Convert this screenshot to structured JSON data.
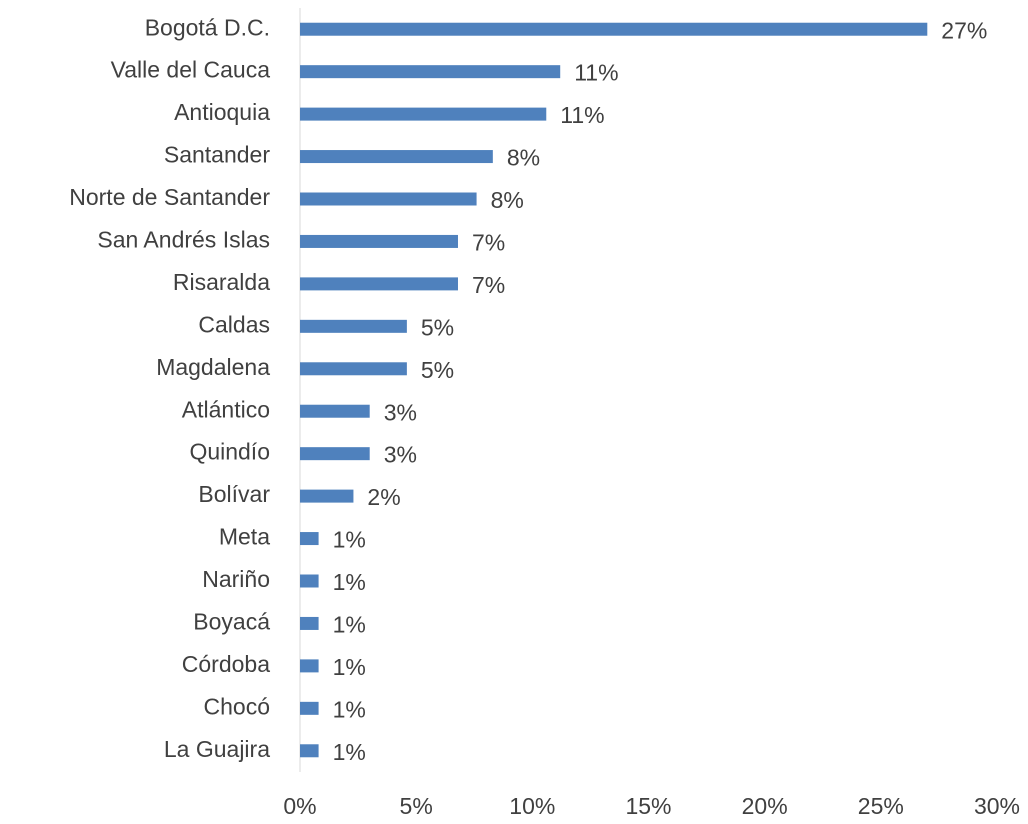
{
  "chart_data": {
    "type": "barh",
    "categories": [
      "Bogotá D.C.",
      "Valle del Cauca",
      "Antioquia",
      "Santander",
      "Norte de Santander",
      "San Andrés Islas",
      "Risaralda",
      "Caldas",
      "Magdalena",
      "Atlántico",
      "Quindío",
      "Bolívar",
      "Meta",
      "Nariño",
      "Boyacá",
      "Córdoba",
      "Chocó",
      "La Guajira"
    ],
    "values": [
      27,
      11.2,
      10.6,
      8.3,
      7.6,
      6.8,
      6.8,
      4.6,
      4.6,
      3.0,
      3.0,
      2.3,
      0.8,
      0.8,
      0.8,
      0.8,
      0.8,
      0.8
    ],
    "value_labels": [
      "27%",
      "11%",
      "11%",
      "8%",
      "8%",
      "7%",
      "7%",
      "5%",
      "5%",
      "3%",
      "3%",
      "2%",
      "1%",
      "1%",
      "1%",
      "1%",
      "1%",
      "1%"
    ],
    "color": "#4f81bd",
    "xlim": [
      0,
      30
    ],
    "xticks": [
      {
        "value": 0,
        "label": "0%"
      },
      {
        "value": 5,
        "label": "5%"
      },
      {
        "value": 10,
        "label": "10%"
      },
      {
        "value": 15,
        "label": "15%"
      },
      {
        "value": 20,
        "label": "20%"
      },
      {
        "value": 25,
        "label": "25%"
      },
      {
        "value": 30,
        "label": "30%"
      }
    ]
  }
}
